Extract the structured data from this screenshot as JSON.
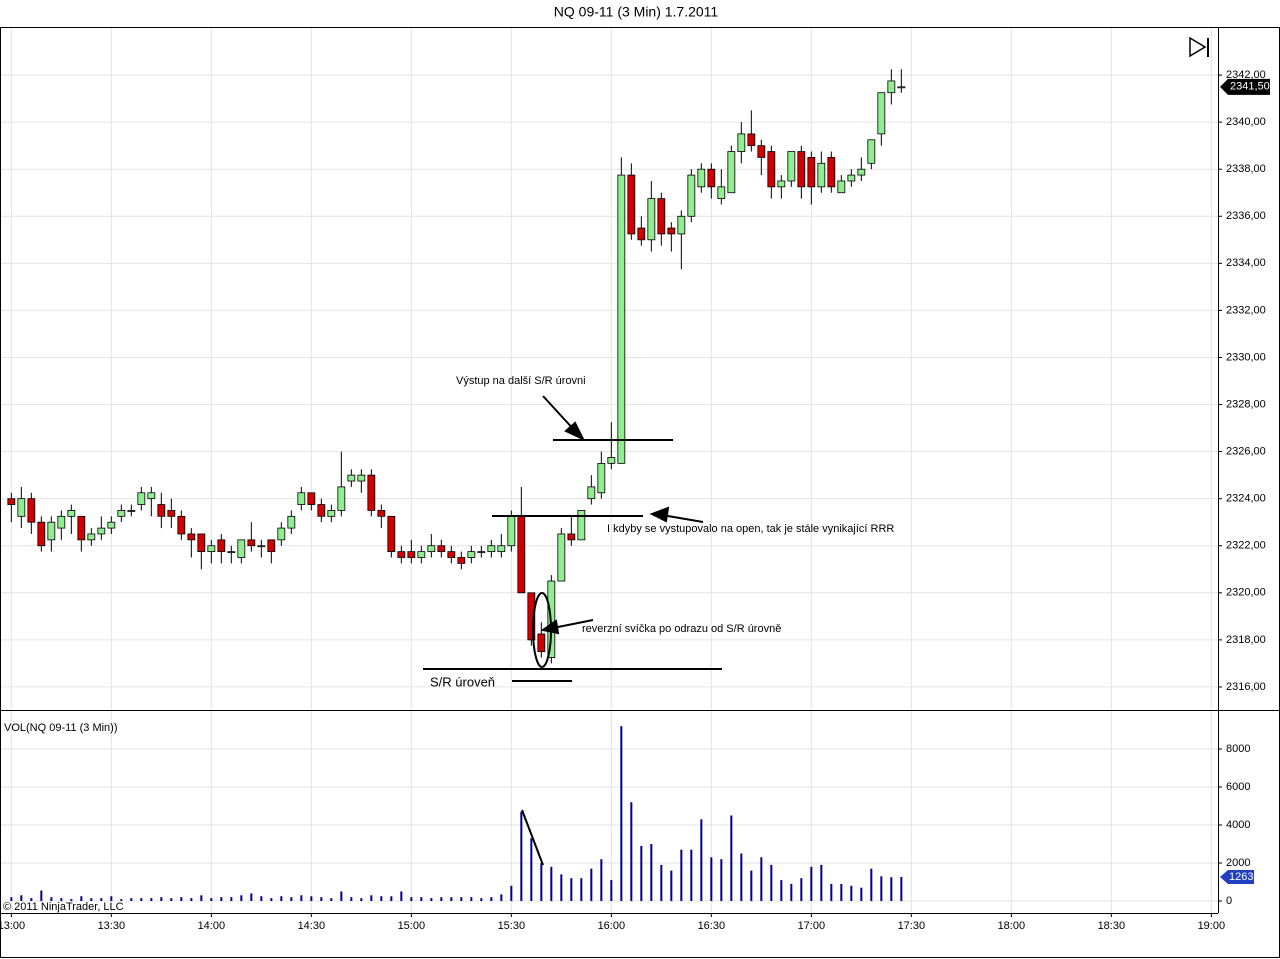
{
  "chart_data": [
    {
      "type": "candlestick",
      "title": "NQ 09-11 (3 Min)  1.7.2011",
      "x": [
        780,
        783,
        786,
        789,
        792,
        795,
        798,
        801,
        804,
        807,
        810,
        813,
        816,
        819,
        822,
        825,
        828,
        831,
        834,
        837,
        840,
        843,
        846,
        849,
        852,
        855,
        858,
        861,
        864,
        867,
        870,
        873,
        876,
        879,
        882,
        885,
        888,
        891,
        894,
        897,
        900,
        903,
        906,
        909,
        912,
        915,
        918,
        921,
        924,
        927,
        930,
        933,
        936,
        939,
        942,
        945,
        948,
        951,
        954,
        957,
        960,
        963,
        966,
        969,
        972,
        975,
        978,
        981,
        984,
        987,
        990,
        993,
        996,
        999,
        1002,
        1005,
        1008,
        1011,
        1014,
        1017,
        1020,
        1023,
        1026,
        1029,
        1032,
        1035,
        1038,
        1041,
        1044,
        1047
      ],
      "open": [
        2324,
        2323.25,
        2324,
        2323,
        2322.25,
        2322.75,
        2323.25,
        2323.25,
        2322.25,
        2322.5,
        2322.75,
        2323.25,
        2323.5,
        2323.75,
        2324,
        2323.75,
        2323.5,
        2323.25,
        2322.5,
        2322.5,
        2321.75,
        2322.25,
        2321.75,
        2321.5,
        2322.25,
        2322,
        2322.25,
        2322.25,
        2322.75,
        2323.75,
        2324.25,
        2323.75,
        2323.25,
        2323.5,
        2324.75,
        2324.75,
        2325,
        2323.5,
        2323.25,
        2321.75,
        2321.75,
        2321.5,
        2321.75,
        2322,
        2321.75,
        2321.5,
        2321.5,
        2321.75,
        2321.75,
        2321.75,
        2322,
        2323.25,
        2320,
        2318.25,
        2317.25,
        2320.5,
        2322.5,
        2322.25,
        2324,
        2324.25,
        2325.5,
        2325.5,
        2337.75,
        2335.5,
        2335,
        2336.75,
        2335.5,
        2335.25,
        2336,
        2337.25,
        2338,
        2336.75,
        2337,
        2338.75,
        2339.5,
        2339,
        2338.75,
        2337.25,
        2337.5,
        2338.75,
        2338.5,
        2337.25,
        2338.5,
        2337,
        2337.5,
        2337.75,
        2338.25,
        2339.5,
        2341.25,
        2341.5
      ],
      "high": [
        2324.25,
        2324.5,
        2324.25,
        2323.25,
        2323.25,
        2323.5,
        2323.75,
        2323.25,
        2322.75,
        2323.25,
        2323.25,
        2323.75,
        2323.75,
        2324.5,
        2324.5,
        2324.25,
        2324,
        2323.5,
        2322.75,
        2322.5,
        2322.25,
        2322.5,
        2322,
        2322.25,
        2323,
        2322.25,
        2322.25,
        2323,
        2323.5,
        2324.5,
        2324.25,
        2324,
        2323.75,
        2326,
        2325.25,
        2325.25,
        2325.25,
        2323.75,
        2323.25,
        2322,
        2322.25,
        2322,
        2322.5,
        2322.25,
        2322,
        2321.75,
        2322,
        2322,
        2322.25,
        2322.5,
        2323.5,
        2324.5,
        2320,
        2318.75,
        2320.75,
        2322.75,
        2323.25,
        2323.5,
        2325,
        2326,
        2327.25,
        2338.5,
        2338.25,
        2336,
        2337.5,
        2337,
        2335.75,
        2336.25,
        2338,
        2338.25,
        2338.25,
        2338,
        2339,
        2340,
        2340.5,
        2339.25,
        2339,
        2337.75,
        2338.75,
        2339,
        2338.75,
        2338.75,
        2338.75,
        2337.75,
        2338,
        2338.5,
        2339.25,
        2341.25,
        2342.25,
        2342.25
      ],
      "low": [
        2323,
        2322.75,
        2322.5,
        2321.75,
        2321.75,
        2322.25,
        2322.5,
        2321.75,
        2322,
        2322.25,
        2322.5,
        2323,
        2323.25,
        2323.5,
        2323.25,
        2322.75,
        2322.75,
        2322.25,
        2321.5,
        2321,
        2321.25,
        2321.25,
        2321.25,
        2321.25,
        2321.75,
        2321.5,
        2321.25,
        2322,
        2322.5,
        2323.5,
        2323.5,
        2323,
        2323,
        2323.25,
        2324.5,
        2324.25,
        2323.25,
        2322.75,
        2321.5,
        2321.25,
        2321.25,
        2321.25,
        2321.5,
        2321.5,
        2321.25,
        2321,
        2321.25,
        2321.5,
        2321.5,
        2321.5,
        2321.75,
        2320,
        2317.75,
        2317.25,
        2317,
        2320.5,
        2322,
        2322.25,
        2323.75,
        2324,
        2325.25,
        2325.5,
        2335,
        2334.75,
        2334.5,
        2334.75,
        2334.5,
        2333.75,
        2335.75,
        2337,
        2336.75,
        2336.5,
        2337,
        2338.25,
        2338.75,
        2337.75,
        2336.75,
        2336.75,
        2337.25,
        2336.75,
        2336.5,
        2337,
        2337,
        2337,
        2337.25,
        2337.5,
        2338,
        2339,
        2340.75,
        2341.25
      ],
      "close": [
        2323.75,
        2324,
        2323,
        2322,
        2323,
        2323.25,
        2323.5,
        2322.25,
        2322.5,
        2322.75,
        2323,
        2323.5,
        2323.5,
        2324.25,
        2324.25,
        2323.25,
        2323.25,
        2322.5,
        2322.25,
        2321.75,
        2322,
        2321.75,
        2321.75,
        2322.25,
        2322,
        2322,
        2321.75,
        2322.75,
        2323.25,
        2324.25,
        2323.75,
        2323.25,
        2323.5,
        2324.5,
        2325,
        2325,
        2323.5,
        2323.25,
        2321.75,
        2321.5,
        2321.5,
        2321.75,
        2322,
        2321.75,
        2321.5,
        2321.25,
        2321.75,
        2321.75,
        2322,
        2322,
        2323.25,
        2320,
        2318,
        2317.5,
        2320.5,
        2322.5,
        2322.25,
        2323.5,
        2324.5,
        2325.5,
        2325.75,
        2337.75,
        2335.25,
        2335,
        2336.75,
        2335.25,
        2335.25,
        2336,
        2337.75,
        2338,
        2337.25,
        2337.25,
        2338.75,
        2339.5,
        2339,
        2338.5,
        2337.25,
        2337.5,
        2338.75,
        2337.25,
        2337.25,
        2338.25,
        2337.25,
        2337.5,
        2337.75,
        2338,
        2339.25,
        2341.25,
        2341.75,
        2341.5
      ],
      "up_color": "#90ee90",
      "down_color": "#d00000",
      "xlim": [
        776.9,
        1142
      ],
      "xticks": [
        {
          "value": 780,
          "label": "13:00"
        },
        {
          "value": 810,
          "label": "13:30"
        },
        {
          "value": 840,
          "label": "14:00"
        },
        {
          "value": 870,
          "label": "14:30"
        },
        {
          "value": 900,
          "label": "15:00"
        },
        {
          "value": 930,
          "label": "15:30"
        },
        {
          "value": 960,
          "label": "16:00"
        },
        {
          "value": 990,
          "label": "16:30"
        },
        {
          "value": 1020,
          "label": "17:00"
        },
        {
          "value": 1050,
          "label": "17:30"
        },
        {
          "value": 1080,
          "label": "18:00"
        },
        {
          "value": 1110,
          "label": "18:30"
        },
        {
          "value": 1140,
          "label": "19:00"
        }
      ],
      "ylim": [
        2315.02,
        2344
      ],
      "yticks": [
        {
          "value": 2316,
          "label": "2316,00"
        },
        {
          "value": 2318,
          "label": "2318,00"
        },
        {
          "value": 2320,
          "label": "2320,00"
        },
        {
          "value": 2322,
          "label": "2322,00"
        },
        {
          "value": 2324,
          "label": "2324,00"
        },
        {
          "value": 2326,
          "label": "2326,00"
        },
        {
          "value": 2328,
          "label": "2328,00"
        },
        {
          "value": 2330,
          "label": "2330,00"
        },
        {
          "value": 2332,
          "label": "2332,00"
        },
        {
          "value": 2334,
          "label": "2334,00"
        },
        {
          "value": 2336,
          "label": "2336,00"
        },
        {
          "value": 2338,
          "label": "2338,00"
        },
        {
          "value": 2340,
          "label": "2340,00"
        },
        {
          "value": 2342,
          "label": "2342,00"
        }
      ],
      "grid": true,
      "last_price": {
        "value": 2341.5,
        "label": "2341,50"
      },
      "annotations": [
        "Výstup na další S/R úrovni",
        "I kdyby se vystupovalo na open, tak je stále vynikající RRR",
        "reverzní svíčka po odrazu od S/R úrovně",
        "S/R úroveň"
      ]
    },
    {
      "type": "bar",
      "title": "VOL(NQ 09-11 (3 Min))",
      "x": [
        780,
        783,
        786,
        789,
        792,
        795,
        798,
        801,
        804,
        807,
        810,
        813,
        816,
        819,
        822,
        825,
        828,
        831,
        834,
        837,
        840,
        843,
        846,
        849,
        852,
        855,
        858,
        861,
        864,
        867,
        870,
        873,
        876,
        879,
        882,
        885,
        888,
        891,
        894,
        897,
        900,
        903,
        906,
        909,
        912,
        915,
        918,
        921,
        924,
        927,
        930,
        933,
        936,
        939,
        942,
        945,
        948,
        951,
        954,
        957,
        960,
        963,
        966,
        969,
        972,
        975,
        978,
        981,
        984,
        987,
        990,
        993,
        996,
        999,
        1002,
        1005,
        1008,
        1011,
        1014,
        1017,
        1020,
        1023,
        1026,
        1029,
        1032,
        1035,
        1038,
        1041,
        1044,
        1047
      ],
      "values": [
        200,
        300,
        150,
        550,
        200,
        150,
        100,
        250,
        150,
        150,
        250,
        100,
        150,
        150,
        150,
        200,
        150,
        200,
        150,
        300,
        150,
        200,
        200,
        300,
        400,
        250,
        150,
        250,
        200,
        300,
        250,
        200,
        150,
        500,
        200,
        150,
        300,
        250,
        250,
        500,
        200,
        200,
        150,
        200,
        200,
        200,
        200,
        150,
        200,
        350,
        800,
        4700,
        3300,
        2000,
        1800,
        1400,
        1200,
        1200,
        1700,
        2200,
        1100,
        9200,
        5200,
        2900,
        3000,
        1900,
        1600,
        2700,
        2700,
        4300,
        2300,
        2200,
        4500,
        2500,
        1600,
        2300,
        1900,
        1100,
        900,
        1200,
        1800,
        1900,
        900,
        900,
        800,
        700,
        1700,
        1300,
        1250,
        1263
      ],
      "color": "#00008b",
      "last_color": "#2040c0",
      "xlim": [
        776.9,
        1142
      ],
      "xticks": [
        {
          "value": 780,
          "label": "13:00"
        },
        {
          "value": 810,
          "label": "13:30"
        },
        {
          "value": 840,
          "label": "14:00"
        },
        {
          "value": 870,
          "label": "14:30"
        },
        {
          "value": 900,
          "label": "15:00"
        },
        {
          "value": 930,
          "label": "15:30"
        },
        {
          "value": 960,
          "label": "16:00"
        },
        {
          "value": 990,
          "label": "16:30"
        },
        {
          "value": 1020,
          "label": "17:00"
        },
        {
          "value": 1050,
          "label": "17:30"
        },
        {
          "value": 1080,
          "label": "18:00"
        },
        {
          "value": 1110,
          "label": "18:30"
        },
        {
          "value": 1140,
          "label": "19:00"
        }
      ],
      "ylim": [
        -632,
        10053
      ],
      "yticks": [
        0,
        2000,
        4000,
        6000,
        8000
      ],
      "grid": true,
      "annotations": [
        "© 2011 NinjaTrader, LLC"
      ]
    }
  ]
}
